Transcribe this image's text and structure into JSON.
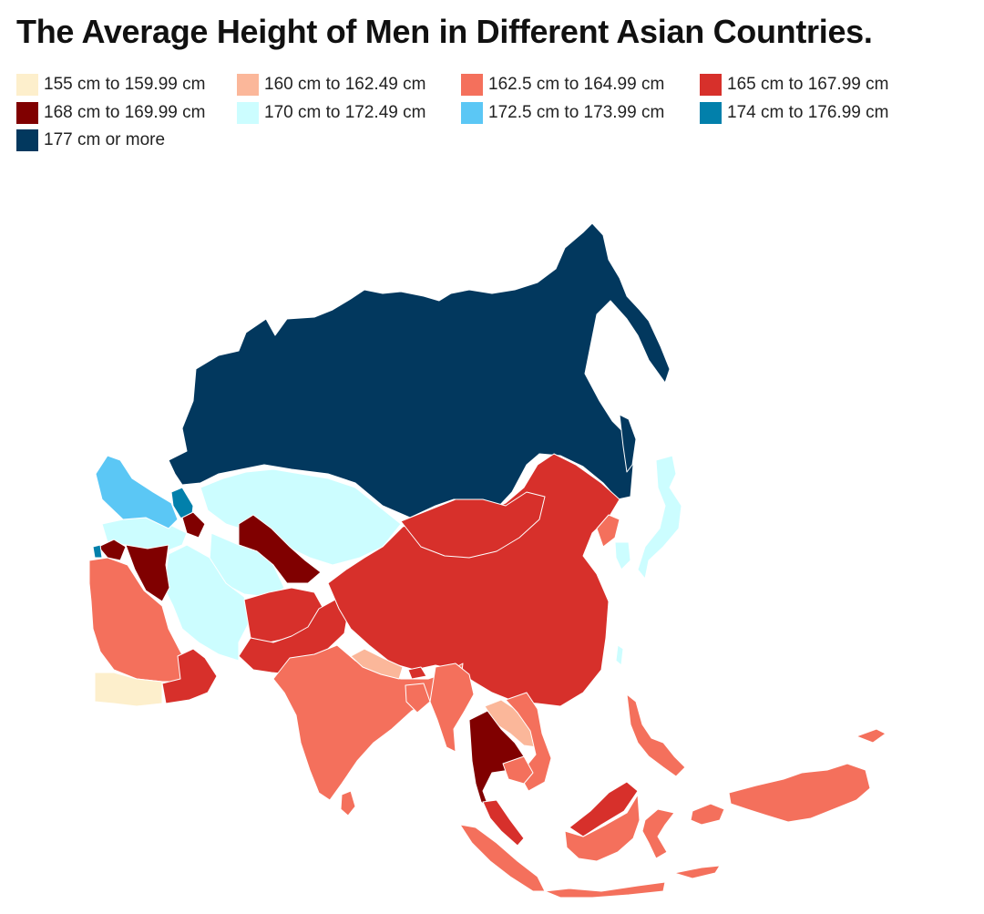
{
  "title": "The Average Height of Men in Different Asian Countries.",
  "legend": [
    {
      "label": "155 cm to 159.99 cm",
      "color": "#fdefcc"
    },
    {
      "label": "160 cm to 162.49 cm",
      "color": "#fbb79a"
    },
    {
      "label": "162.5 cm to 164.99 cm",
      "color": "#f4705c"
    },
    {
      "label": "165 cm to 167.99 cm",
      "color": "#d7302b"
    },
    {
      "label": "168 cm to 169.99 cm",
      "color": "#800000"
    },
    {
      "label": "170 cm to 172.49 cm",
      "color": "#ccfdff"
    },
    {
      "label": "172.5 cm to 173.99 cm",
      "color": "#5bc7f5"
    },
    {
      "label": "174 cm to 176.99 cm",
      "color": "#0280ab"
    },
    {
      "label": "177 cm or more",
      "color": "#02385e"
    }
  ]
}
